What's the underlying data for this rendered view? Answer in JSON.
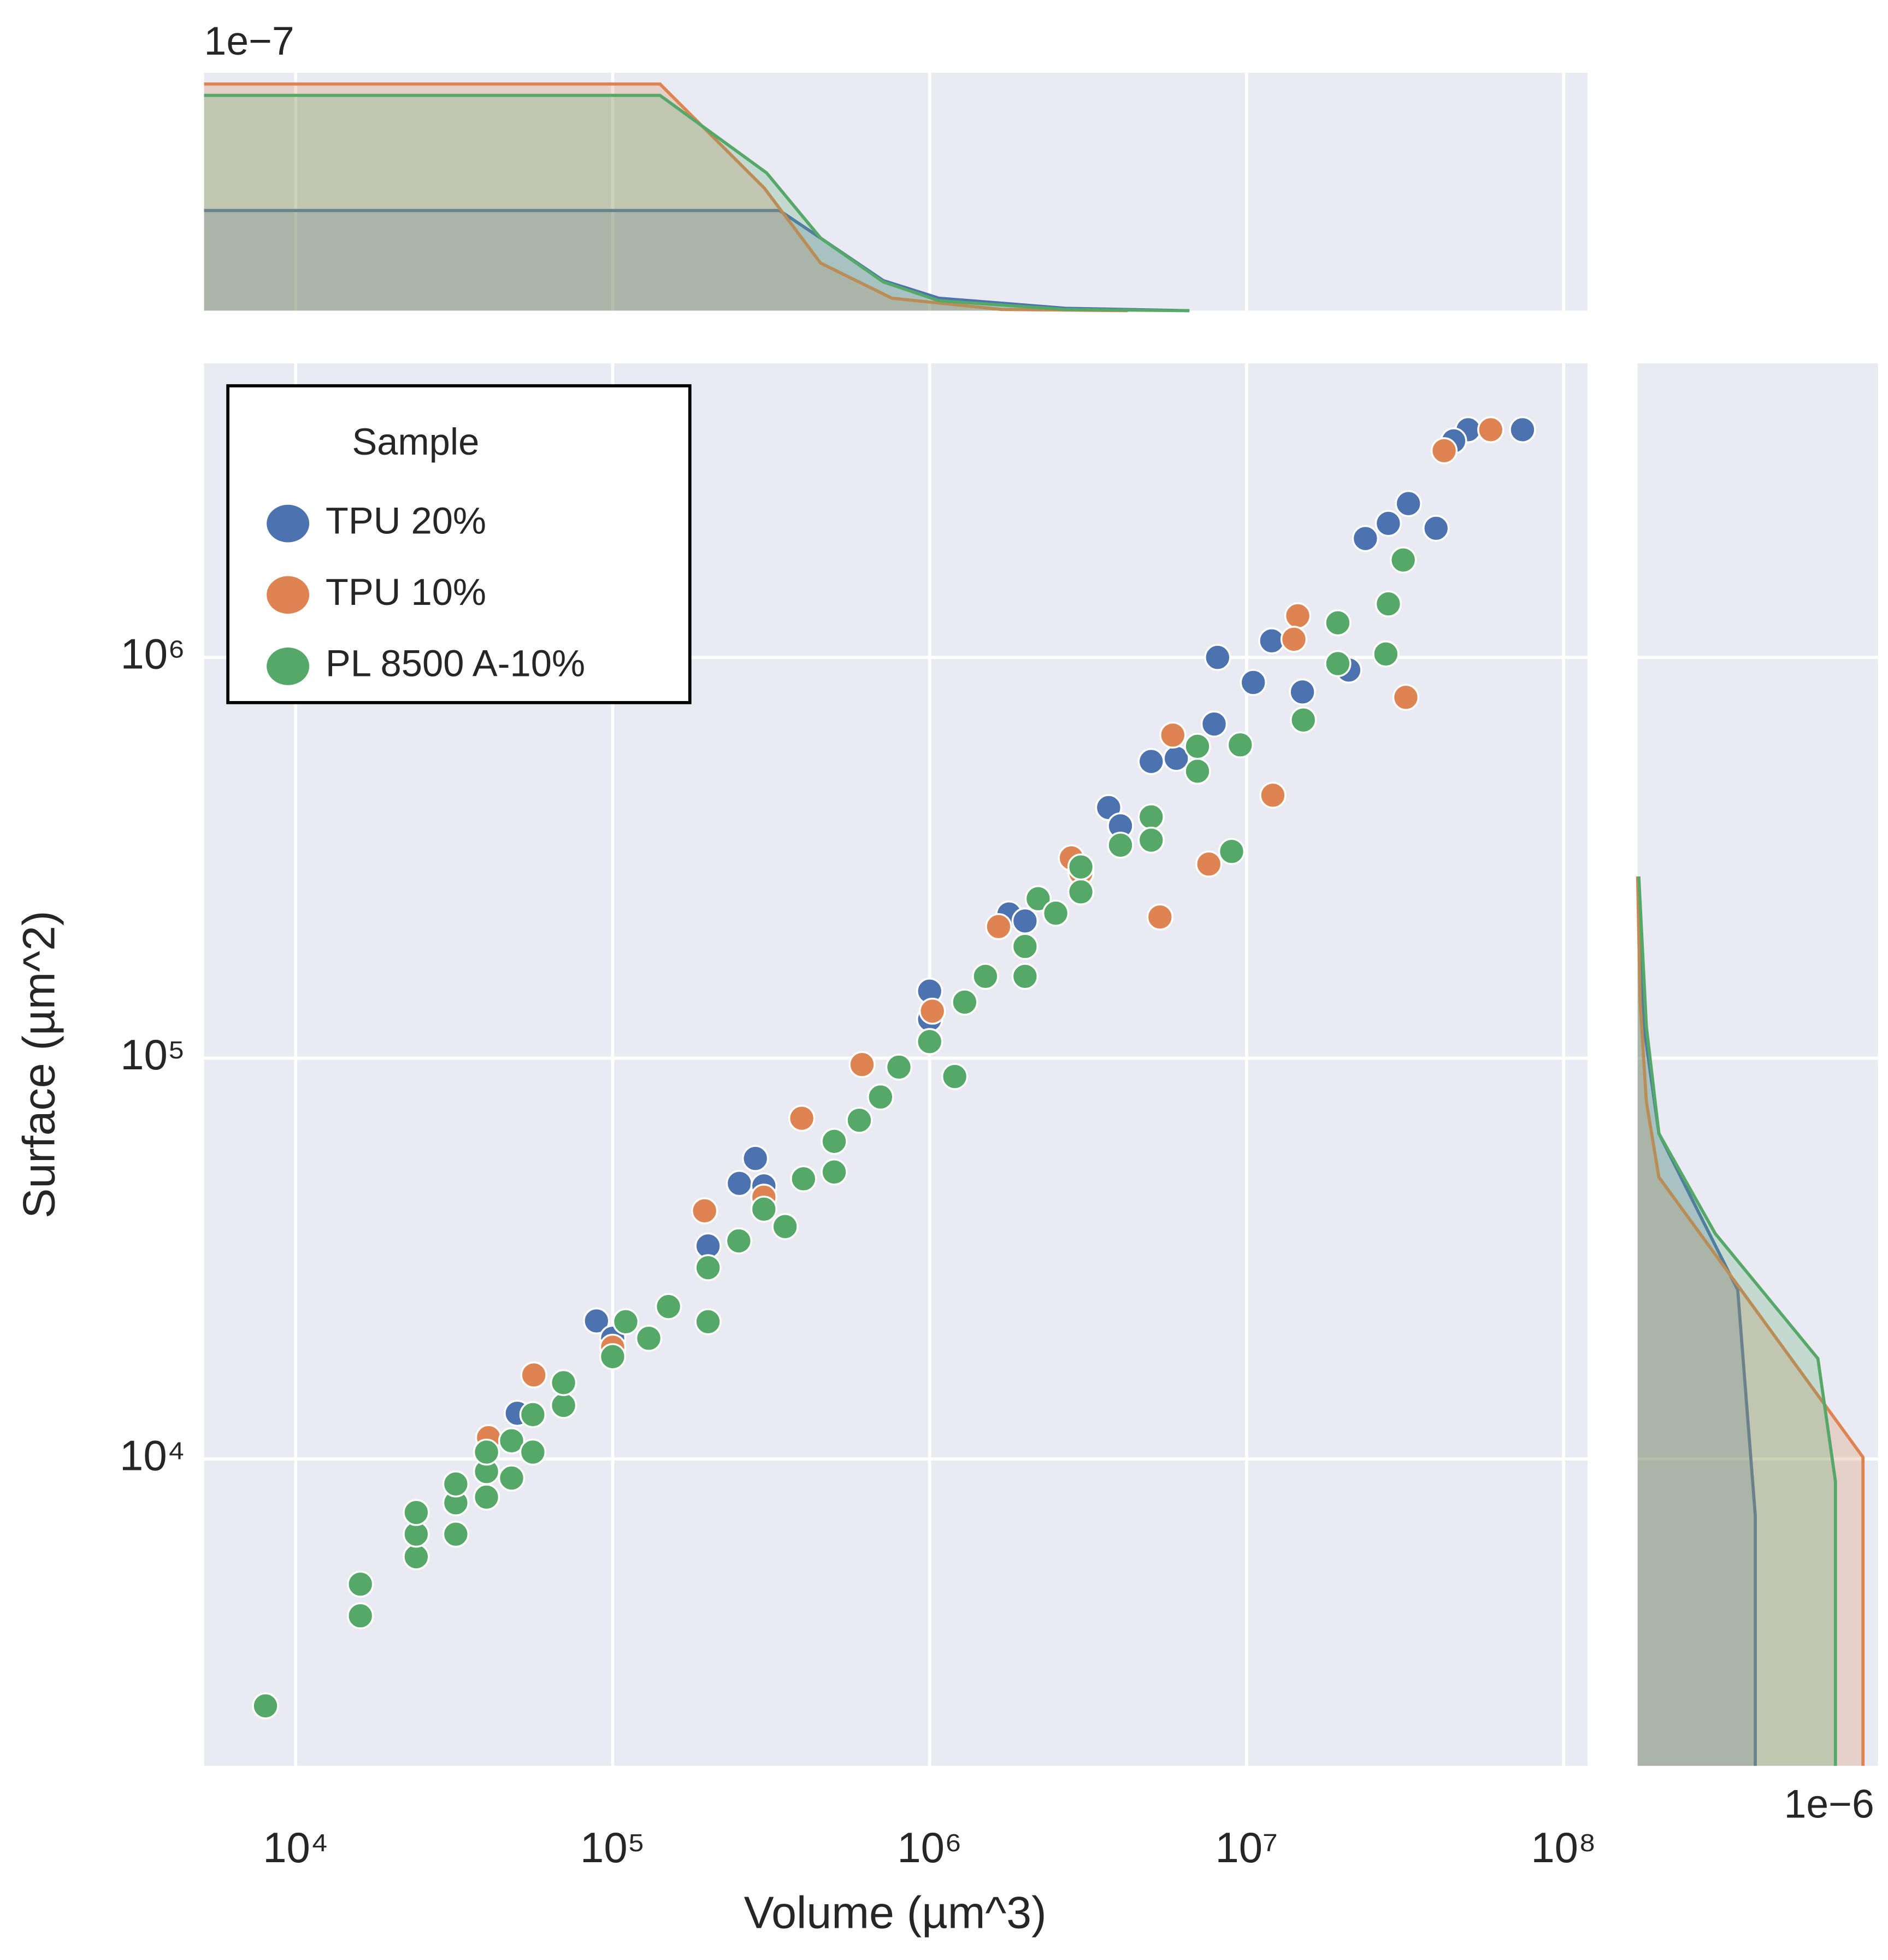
{
  "chart_data": [
    {
      "type": "scatter",
      "xlabel": "Volume (µm^3)",
      "ylabel": "Surface (µm^2)",
      "xscale": "log",
      "yscale": "log",
      "xlim": [
        5140,
        119000000
      ],
      "ylim": [
        1715,
        5420000
      ],
      "xticks": [
        {
          "value": 10000,
          "label": "10⁴"
        },
        {
          "value": 100000,
          "label": "10⁵"
        },
        {
          "value": 1000000,
          "label": "10⁶"
        },
        {
          "value": 10000000,
          "label": "10⁷"
        },
        {
          "value": 100000000,
          "label": "10⁸"
        }
      ],
      "yticks": [
        {
          "value": 10000,
          "label": "10⁴"
        },
        {
          "value": 100000,
          "label": "10⁵"
        },
        {
          "value": 1000000,
          "label": "10⁶"
        }
      ],
      "grid": true,
      "legend_title": "Sample",
      "legend": "upper left",
      "series": [
        {
          "name": "TPU 20%",
          "color": "#4c72b0",
          "x": [
            74200000,
            50000000,
            45000000,
            32400000,
            28000000,
            23700000,
            39600000,
            8100000,
            12000000,
            21000000,
            10500000,
            15000000,
            7900000,
            5000000,
            3670000,
            6000000,
            4000000,
            1780000,
            2000000,
            1000000,
            1000000,
            282000,
            251000,
            300000,
            200000,
            88900,
            100000,
            50000
          ],
          "values": [
            3700000,
            3700000,
            3470000,
            2420000,
            2160000,
            1980000,
            2100000,
            1000000,
            1100000,
            930000,
            866000,
            820000,
            682000,
            550000,
            422000,
            560000,
            380000,
            229000,
            220000,
            147000,
            125000,
            56200,
            48700,
            48000,
            34000,
            22100,
            20000,
            13000
          ]
        },
        {
          "name": "TPU 10%",
          "color": "#dd8452",
          "x": [
            58900000,
            42000000,
            14500000,
            14100000,
            31800000,
            5850000,
            12100000,
            7600000,
            2800000,
            5330000,
            1650000,
            1020000,
            612000,
            395000,
            195000,
            56400,
            40600,
            300000,
            1000000,
            3000000,
            200000,
            100000
          ],
          "values": [
            3700000,
            3280000,
            1270000,
            1110000,
            795000,
            640000,
            453000,
            305000,
            316000,
            225000,
            213000,
            131000,
            96400,
            70800,
            41600,
            16200,
            11300,
            45000,
            110000,
            290000,
            30000,
            19000
          ]
        },
        {
          "name": "PL 8500 A-10%",
          "color": "#55a868",
          "x": [
            8030,
            16000,
            16000,
            24000,
            24000,
            24000,
            32000,
            32000,
            32000,
            40000,
            40000,
            40000,
            48000,
            48000,
            56000,
            56000,
            70000,
            70000,
            100000,
            110000,
            130000,
            150000,
            200000,
            200000,
            250000,
            300000,
            350000,
            400000,
            500000,
            500000,
            600000,
            700000,
            800000,
            1000000,
            1290000,
            1200000,
            1500000,
            2000000,
            2000000,
            2200000,
            2500000,
            3000000,
            3000000,
            4000000,
            5000000,
            5000000,
            7000000,
            7000000,
            9550000,
            8970000,
            15100000,
            19400000,
            19400000,
            27500000,
            28000000,
            31200000
          ],
          "values": [
            2420,
            4060,
            4870,
            5700,
            6490,
            7350,
            6490,
            7770,
            8660,
            8030,
            9300,
            10400,
            8960,
            11100,
            10400,
            12900,
            13600,
            15500,
            18000,
            22000,
            20000,
            24000,
            30000,
            22000,
            35000,
            42000,
            38000,
            50000,
            62000,
            52000,
            70000,
            80000,
            95000,
            110000,
            138000,
            90000,
            160000,
            190000,
            160000,
            250000,
            230000,
            260000,
            300000,
            340000,
            400000,
            350000,
            520000,
            600000,
            605000,
            328000,
            698000,
            1220000,
            965000,
            1020000,
            1360000,
            1750000
          ]
        }
      ]
    },
    {
      "type": "area",
      "offset_label": "1e−7",
      "xscale": "log",
      "xlim": [
        5140,
        119000000
      ],
      "ylim": [
        0,
        2e-07
      ],
      "series": [
        {
          "color": "#4c72b0",
          "x": [
            5140,
            336000,
            453000,
            714000,
            1070000,
            2690000,
            6600000
          ],
          "values": [
            8.42e-08,
            8.42e-08,
            6.1e-08,
            2.53e-08,
            1.05e-08,
            2e-09,
            0
          ]
        },
        {
          "color": "#dd8452",
          "x": [
            5140,
            141000,
            301000,
            453000,
            760000,
            1690000,
            4220000
          ],
          "values": [
            1.905e-07,
            1.905e-07,
            1.03e-07,
            4e-08,
            1.05e-08,
            1e-09,
            0
          ]
        },
        {
          "color": "#55a868",
          "x": [
            5140,
            141000,
            306000,
            453000,
            714000,
            1070000,
            2690000,
            6600000
          ],
          "values": [
            1.81e-07,
            1.81e-07,
            1.158e-07,
            6.1e-08,
            2.42e-08,
            8.4e-09,
            1e-09,
            0
          ]
        }
      ]
    },
    {
      "type": "area",
      "orientation": "horizontal",
      "offset_label": "1e−6",
      "xlim": [
        0,
        2e-06
      ],
      "yscale": "log",
      "ylim": [
        1715,
        5420000
      ],
      "series": [
        {
          "color": "#4c72b0",
          "y": [
            1715,
            7230,
            26400,
            64900,
            120000,
            284000
          ],
          "values": [
            9.79e-07,
            9.79e-07,
            8.33e-07,
            1.77e-07,
            5.2e-08,
            1e-08
          ]
        },
        {
          "color": "#dd8452",
          "y": [
            1715,
            10100,
            50500,
            77800,
            138000,
            284000
          ],
          "values": [
            1.875e-06,
            1.875e-06,
            1.77e-07,
            7.3e-08,
            2.1e-08,
            0
          ]
        },
        {
          "color": "#55a868",
          "y": [
            1715,
            8790,
            17800,
            36500,
            64900,
            120000,
            284000
          ],
          "values": [
            1.646e-06,
            1.646e-06,
            1.5e-06,
            6.46e-07,
            1.77e-07,
            7.3e-08,
            1e-08
          ]
        }
      ]
    }
  ]
}
